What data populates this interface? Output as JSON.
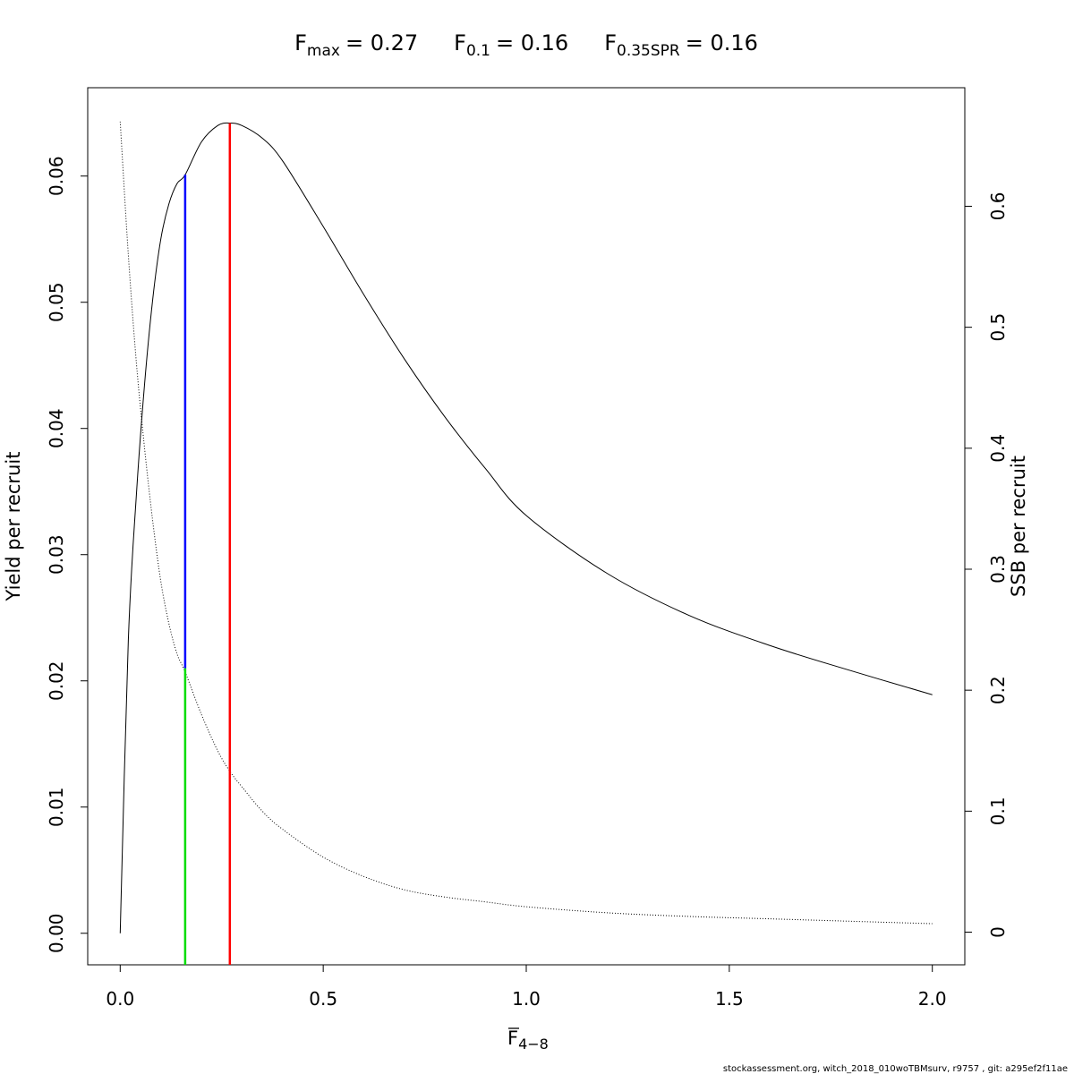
{
  "chart_data": {
    "type": "line",
    "title": {
      "fmax": {
        "base": "F",
        "sub": "max",
        "value": "= 0.27"
      },
      "f01": {
        "base": "F",
        "sub": "0.1",
        "value": "= 0.16"
      },
      "fspr": {
        "base": "F",
        "sub": "0.35SPR",
        "value": "= 0.16"
      }
    },
    "xlabel": {
      "base": "F",
      "sub": "4−8"
    },
    "ylabel_left": "Yield per recruit",
    "ylabel_right": "SSB per recruit",
    "xlim": [
      -0.08,
      2.08
    ],
    "ylim_left": [
      -0.0025,
      0.067
    ],
    "ylim_right": [
      -0.027,
      0.698
    ],
    "x_ticks": [
      "0.0",
      "0.5",
      "1.0",
      "1.5",
      "2.0"
    ],
    "y_left_ticks": [
      "0.00",
      "0.01",
      "0.02",
      "0.03",
      "0.04",
      "0.05",
      "0.06"
    ],
    "y_right_ticks": [
      "0",
      "0.1",
      "0.2",
      "0.3",
      "0.4",
      "0.5",
      "0.6"
    ],
    "x_range": [
      0,
      2.0
    ],
    "reference_points": {
      "fmax": 0.27,
      "f01": 0.16,
      "fspr": 0.16
    },
    "series": [
      {
        "axis": "left",
        "style": "solid",
        "x": [
          0,
          0.02,
          0.04,
          0.06,
          0.08,
          0.1,
          0.12,
          0.14,
          0.16,
          0.2,
          0.24,
          0.27,
          0.3,
          0.35,
          0.4,
          0.5,
          0.6,
          0.7,
          0.8,
          0.9,
          1.0,
          1.2,
          1.4,
          1.6,
          1.8,
          2.0
        ],
        "values": [
          0,
          0.0232,
          0.0348,
          0.0435,
          0.0502,
          0.055,
          0.0578,
          0.0594,
          0.0601,
          0.0627,
          0.064,
          0.0642,
          0.064,
          0.063,
          0.0612,
          0.056,
          0.0506,
          0.0455,
          0.0409,
          0.0368,
          0.0331,
          0.0285,
          0.0252,
          0.0228,
          0.0208,
          0.0189
        ]
      },
      {
        "axis": "right",
        "style": "dotted",
        "x": [
          0,
          0.02,
          0.04,
          0.06,
          0.08,
          0.1,
          0.12,
          0.14,
          0.16,
          0.2,
          0.24,
          0.27,
          0.3,
          0.35,
          0.4,
          0.5,
          0.6,
          0.7,
          0.8,
          0.9,
          1.0,
          1.2,
          1.4,
          1.6,
          1.8,
          2.0
        ],
        "values": [
          0.67,
          0.56,
          0.47,
          0.4,
          0.34,
          0.29,
          0.255,
          0.23,
          0.215,
          0.18,
          0.15,
          0.133,
          0.12,
          0.1,
          0.085,
          0.062,
          0.046,
          0.035,
          0.029,
          0.025,
          0.021,
          0.016,
          0.013,
          0.011,
          0.009,
          0.007
        ]
      }
    ],
    "vlines": [
      {
        "name": "f01-ypr",
        "x": 0.16,
        "from_left": 0.0601,
        "to_left": 0.021,
        "color": "#0000ff"
      },
      {
        "name": "fspr",
        "x": 0.16,
        "from_left": 0.021,
        "to_left": -0.0025,
        "color": "#00dd00"
      },
      {
        "name": "fmax",
        "x": 0.27,
        "from_left": 0.0642,
        "to_left": -0.0025,
        "color": "#ff0000"
      }
    ]
  },
  "footer": "stockassessment.org, witch_2018_010woTBMsurv, r9757 , git: a295ef2f11ae"
}
